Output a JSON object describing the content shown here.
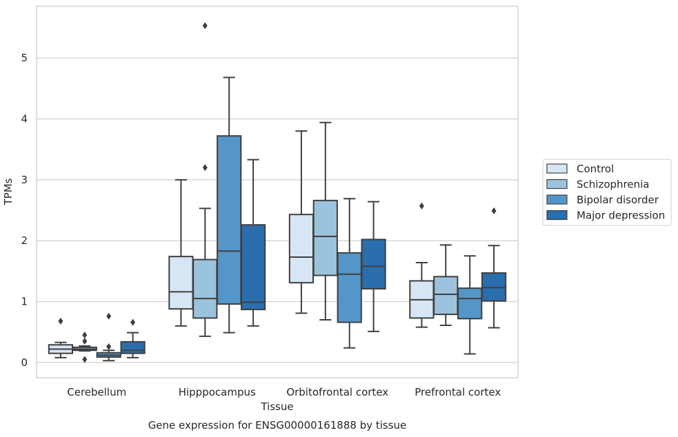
{
  "chart_data": {
    "type": "boxplot",
    "title": "Gene expression for ENSG00000161888 by tissue",
    "xlabel": "Tissue",
    "ylabel": "TPMs",
    "ylim": [
      -0.25,
      5.85
    ],
    "yticks": [
      0,
      1,
      2,
      3,
      4,
      5
    ],
    "grid": "horizontal",
    "legend_placement": "right",
    "categories": [
      "Cerebellum",
      "Hipppocampus",
      "Orbitofrontal cortex",
      "Prefrontal cortex"
    ],
    "series": [
      {
        "name": "Control",
        "color": "#d7e6f4",
        "boxes": [
          {
            "min": 0.08,
            "q1": 0.15,
            "median": 0.22,
            "q3": 0.29,
            "max": 0.33,
            "outliers": [
              0.68
            ]
          },
          {
            "min": 0.6,
            "q1": 0.88,
            "median": 1.16,
            "q3": 1.74,
            "max": 3.0,
            "outliers": []
          },
          {
            "min": 0.81,
            "q1": 1.31,
            "median": 1.73,
            "q3": 2.43,
            "max": 3.8,
            "outliers": []
          },
          {
            "min": 0.58,
            "q1": 0.73,
            "median": 1.03,
            "q3": 1.34,
            "max": 1.64,
            "outliers": [
              2.57
            ]
          }
        ]
      },
      {
        "name": "Schizophrenia",
        "color": "#9cc3dd",
        "boxes": [
          {
            "min": 0.19,
            "q1": 0.2,
            "median": 0.22,
            "q3": 0.25,
            "max": 0.27,
            "outliers": [
              0.05,
              0.35,
              0.45
            ]
          },
          {
            "min": 0.43,
            "q1": 0.73,
            "median": 1.05,
            "q3": 1.69,
            "max": 2.53,
            "outliers": [
              3.2,
              5.53
            ]
          },
          {
            "min": 0.7,
            "q1": 1.43,
            "median": 2.07,
            "q3": 2.66,
            "max": 3.94,
            "outliers": []
          },
          {
            "min": 0.61,
            "q1": 0.79,
            "median": 1.12,
            "q3": 1.41,
            "max": 1.93,
            "outliers": []
          }
        ]
      },
      {
        "name": "Bipolar disorder",
        "color": "#5596c8",
        "boxes": [
          {
            "min": 0.03,
            "q1": 0.09,
            "median": 0.12,
            "q3": 0.16,
            "max": 0.2,
            "outliers": [
              0.26,
              0.76
            ]
          },
          {
            "min": 0.49,
            "q1": 0.96,
            "median": 1.83,
            "q3": 3.72,
            "max": 4.68,
            "outliers": []
          },
          {
            "min": 0.24,
            "q1": 0.66,
            "median": 1.45,
            "q3": 1.8,
            "max": 2.69,
            "outliers": []
          },
          {
            "min": 0.14,
            "q1": 0.72,
            "median": 1.05,
            "q3": 1.22,
            "max": 1.75,
            "outliers": []
          }
        ]
      },
      {
        "name": "Major depression",
        "color": "#2a6ead",
        "boxes": [
          {
            "min": 0.08,
            "q1": 0.15,
            "median": 0.2,
            "q3": 0.34,
            "max": 0.49,
            "outliers": [
              0.66
            ]
          },
          {
            "min": 0.6,
            "q1": 0.87,
            "median": 0.99,
            "q3": 2.26,
            "max": 3.33,
            "outliers": []
          },
          {
            "min": 0.51,
            "q1": 1.21,
            "median": 1.58,
            "q3": 2.02,
            "max": 2.64,
            "outliers": []
          },
          {
            "min": 0.57,
            "q1": 1.01,
            "median": 1.23,
            "q3": 1.47,
            "max": 1.92,
            "outliers": [
              2.49
            ]
          }
        ]
      }
    ]
  }
}
